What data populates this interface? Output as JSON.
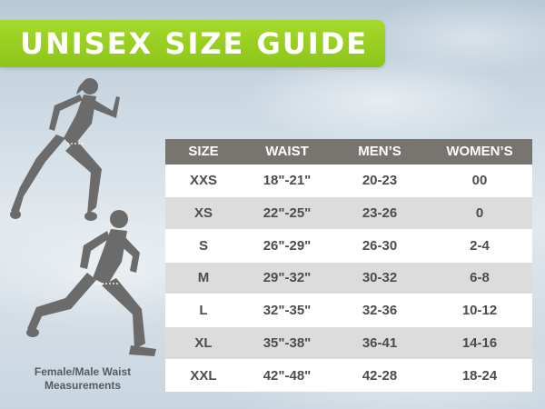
{
  "banner": {
    "title": "UNISEX SIZE GUIDE"
  },
  "colors": {
    "banner_green": "#9bd022",
    "header_gray": "#787570",
    "silhouette_gray": "#6b6b6b",
    "row_alt": "#dcdcdc"
  },
  "illustration": {
    "figures": [
      "female-runner-icon",
      "male-runner-icon"
    ],
    "caption_line1": "Female/Male Waist",
    "caption_line2": "Measurements"
  },
  "table": {
    "headers": [
      "SIZE",
      "WAIST",
      "MEN’S",
      "WOMEN’S"
    ],
    "rows": [
      [
        "XXS",
        "18\"-21\"",
        "20-23",
        "00"
      ],
      [
        "XS",
        "22\"-25\"",
        "23-26",
        "0"
      ],
      [
        "S",
        "26\"-29\"",
        "26-30",
        "2-4"
      ],
      [
        "M",
        "29\"-32\"",
        "30-32",
        "6-8"
      ],
      [
        "L",
        "32\"-35\"",
        "32-36",
        "10-12"
      ],
      [
        "XL",
        "35\"-38\"",
        "36-41",
        "14-16"
      ],
      [
        "XXL",
        "42\"-48\"",
        "42-28",
        "18-24"
      ]
    ]
  }
}
